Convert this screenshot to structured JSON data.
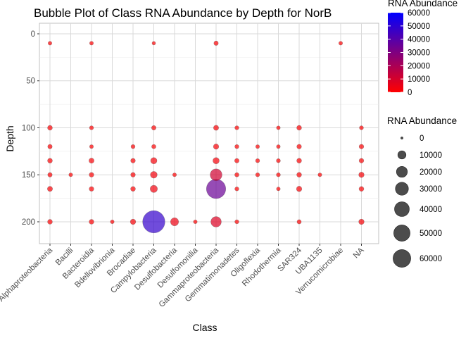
{
  "chart_data": {
    "type": "scatter",
    "title": "Bubble Plot of Class RNA Abundance by Depth for NorB",
    "xlabel": "Class",
    "ylabel": "Depth",
    "categories": [
      "Alphaproteobacteria",
      "Bacilli",
      "Bacteroidia",
      "Bdellovibrionia",
      "Brocadiae",
      "Campylobacteria",
      "Desulfobacteria",
      "Desulfomonilia",
      "Gammaproteobacteria",
      "Gemmatimonadetes",
      "Oligoflexia",
      "Rhodothermia",
      "SAR324",
      "UBA1135",
      "Verrucomicrobiae",
      "NA"
    ],
    "ylim": [
      0,
      220
    ],
    "y_reversed": true,
    "y_ticks": [
      0,
      50,
      100,
      150,
      200
    ],
    "grid": true,
    "color_scale": {
      "low": "#FF0000",
      "high": "#0000FF",
      "min": 0,
      "max": 60000
    },
    "legend_color": {
      "title": "RNA Abundance",
      "ticks": [
        0,
        10000,
        20000,
        30000,
        40000,
        50000,
        60000
      ],
      "labels": [
        "0",
        "10000",
        "20000",
        "30000",
        "40000",
        "50000",
        "60000"
      ]
    },
    "legend_size": {
      "title": "RNA Abundance",
      "values": [
        0,
        10000,
        20000,
        30000,
        40000,
        50000,
        60000
      ],
      "labels": [
        "0",
        "10000",
        "20000",
        "30000",
        "40000",
        "50000",
        "60000"
      ]
    },
    "points": [
      {
        "class": "Alphaproteobacteria",
        "depth": 10,
        "abundance": 300
      },
      {
        "class": "Alphaproteobacteria",
        "depth": 100,
        "abundance": 800
      },
      {
        "class": "Alphaproteobacteria",
        "depth": 120,
        "abundance": 600
      },
      {
        "class": "Alphaproteobacteria",
        "depth": 135,
        "abundance": 800
      },
      {
        "class": "Alphaproteobacteria",
        "depth": 150,
        "abundance": 600
      },
      {
        "class": "Alphaproteobacteria",
        "depth": 165,
        "abundance": 1000
      },
      {
        "class": "Alphaproteobacteria",
        "depth": 200,
        "abundance": 800
      },
      {
        "class": "Bacilli",
        "depth": 150,
        "abundance": 300
      },
      {
        "class": "Bacteroidia",
        "depth": 10,
        "abundance": 300
      },
      {
        "class": "Bacteroidia",
        "depth": 100,
        "abundance": 400
      },
      {
        "class": "Bacteroidia",
        "depth": 120,
        "abundance": 300
      },
      {
        "class": "Bacteroidia",
        "depth": 135,
        "abundance": 1000
      },
      {
        "class": "Bacteroidia",
        "depth": 150,
        "abundance": 700
      },
      {
        "class": "Bacteroidia",
        "depth": 165,
        "abundance": 700
      },
      {
        "class": "Bacteroidia",
        "depth": 200,
        "abundance": 800
      },
      {
        "class": "Bdellovibrionia",
        "depth": 200,
        "abundance": 300
      },
      {
        "class": "Brocadiae",
        "depth": 120,
        "abundance": 400
      },
      {
        "class": "Brocadiae",
        "depth": 135,
        "abundance": 700
      },
      {
        "class": "Brocadiae",
        "depth": 150,
        "abundance": 700
      },
      {
        "class": "Brocadiae",
        "depth": 165,
        "abundance": 800
      },
      {
        "class": "Brocadiae",
        "depth": 200,
        "abundance": 1200
      },
      {
        "class": "Campylobacteria",
        "depth": 10,
        "abundance": 200
      },
      {
        "class": "Campylobacteria",
        "depth": 100,
        "abundance": 600
      },
      {
        "class": "Campylobacteria",
        "depth": 120,
        "abundance": 500
      },
      {
        "class": "Campylobacteria",
        "depth": 135,
        "abundance": 2000
      },
      {
        "class": "Campylobacteria",
        "depth": 150,
        "abundance": 2500
      },
      {
        "class": "Campylobacteria",
        "depth": 165,
        "abundance": 3000
      },
      {
        "class": "Campylobacteria",
        "depth": 200,
        "abundance": 48000
      },
      {
        "class": "Desulfobacteria",
        "depth": 150,
        "abundance": 300
      },
      {
        "class": "Desulfobacteria",
        "depth": 200,
        "abundance": 4000
      },
      {
        "class": "Desulfomonilia",
        "depth": 200,
        "abundance": 300
      },
      {
        "class": "Gammaproteobacteria",
        "depth": 10,
        "abundance": 600
      },
      {
        "class": "Gammaproteobacteria",
        "depth": 100,
        "abundance": 1000
      },
      {
        "class": "Gammaproteobacteria",
        "depth": 120,
        "abundance": 1200
      },
      {
        "class": "Gammaproteobacteria",
        "depth": 135,
        "abundance": 2000
      },
      {
        "class": "Gammaproteobacteria",
        "depth": 150,
        "abundance": 11000
      },
      {
        "class": "Gammaproteobacteria",
        "depth": 165,
        "abundance": 35000
      },
      {
        "class": "Gammaproteobacteria",
        "depth": 200,
        "abundance": 8000
      },
      {
        "class": "Gemmatimonadetes",
        "depth": 100,
        "abundance": 400
      },
      {
        "class": "Gemmatimonadetes",
        "depth": 120,
        "abundance": 400
      },
      {
        "class": "Gemmatimonadetes",
        "depth": 135,
        "abundance": 600
      },
      {
        "class": "Gemmatimonadetes",
        "depth": 150,
        "abundance": 500
      },
      {
        "class": "Gemmatimonadetes",
        "depth": 165,
        "abundance": 400
      },
      {
        "class": "Gemmatimonadetes",
        "depth": 200,
        "abundance": 400
      },
      {
        "class": "Oligoflexia",
        "depth": 120,
        "abundance": 300
      },
      {
        "class": "Oligoflexia",
        "depth": 135,
        "abundance": 400
      },
      {
        "class": "Oligoflexia",
        "depth": 150,
        "abundance": 400
      },
      {
        "class": "Rhodothermia",
        "depth": 100,
        "abundance": 300
      },
      {
        "class": "Rhodothermia",
        "depth": 120,
        "abundance": 300
      },
      {
        "class": "Rhodothermia",
        "depth": 135,
        "abundance": 400
      },
      {
        "class": "Rhodothermia",
        "depth": 150,
        "abundance": 400
      },
      {
        "class": "Rhodothermia",
        "depth": 165,
        "abundance": 300
      },
      {
        "class": "SAR324",
        "depth": 100,
        "abundance": 800
      },
      {
        "class": "SAR324",
        "depth": 120,
        "abundance": 700
      },
      {
        "class": "SAR324",
        "depth": 135,
        "abundance": 800
      },
      {
        "class": "SAR324",
        "depth": 150,
        "abundance": 800
      },
      {
        "class": "SAR324",
        "depth": 165,
        "abundance": 1200
      },
      {
        "class": "SAR324",
        "depth": 200,
        "abundance": 500
      },
      {
        "class": "UBA1135",
        "depth": 150,
        "abundance": 300
      },
      {
        "class": "Verrucomicrobiae",
        "depth": 10,
        "abundance": 300
      },
      {
        "class": "NA",
        "depth": 100,
        "abundance": 400
      },
      {
        "class": "NA",
        "depth": 120,
        "abundance": 700
      },
      {
        "class": "NA",
        "depth": 135,
        "abundance": 700
      },
      {
        "class": "NA",
        "depth": 150,
        "abundance": 1200
      },
      {
        "class": "NA",
        "depth": 165,
        "abundance": 800
      },
      {
        "class": "NA",
        "depth": 200,
        "abundance": 1200
      }
    ]
  }
}
